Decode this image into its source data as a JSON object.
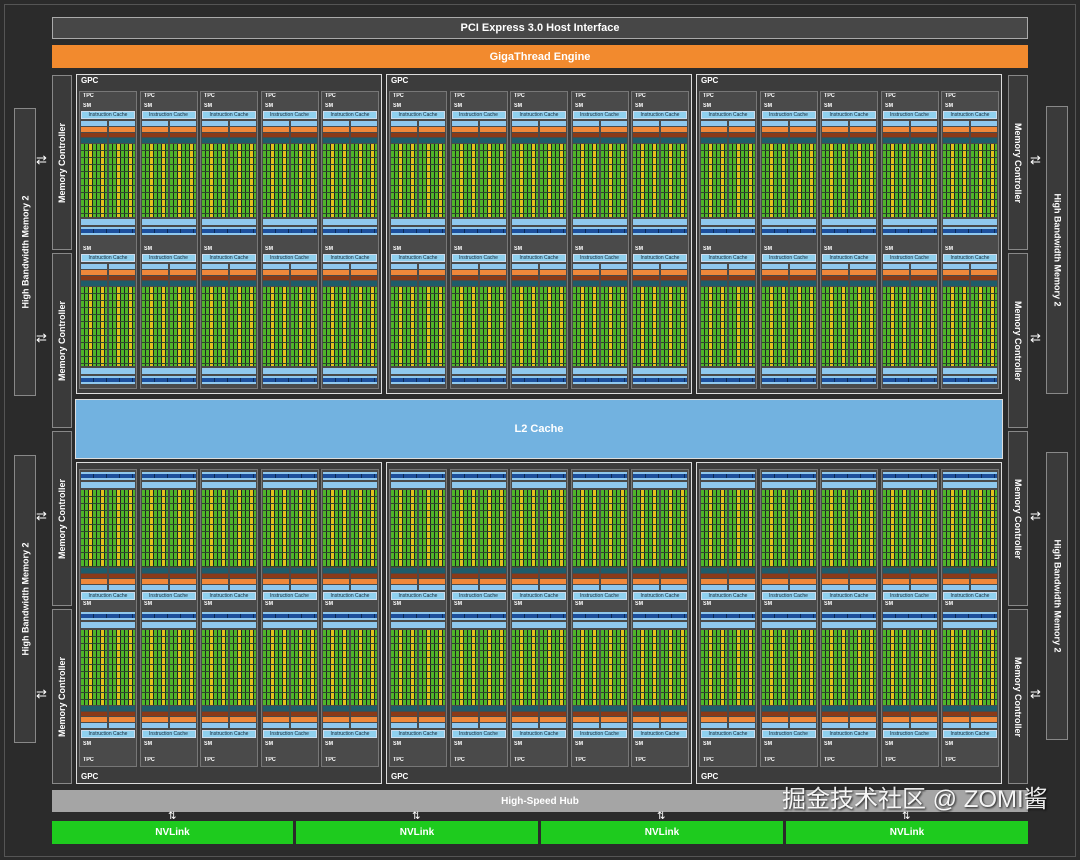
{
  "pci": "PCI Express 3.0 Host Interface",
  "giga": "GigaThread Engine",
  "l2": "L2 Cache",
  "hub": "High-Speed Hub",
  "nvlink": [
    "NVLink",
    "NVLink",
    "NVLink",
    "NVLink"
  ],
  "memory_controller": "Memory Controller",
  "hbm": "High Bandwidth Memory 2",
  "gpc": "GPC",
  "tpc": "TPC",
  "sm": "SM",
  "icache": "Instruction Cache",
  "watermark": "掘金技术社区 @ ZOMI酱",
  "colors": {
    "giga": "#f28a2e",
    "l2": "#72b2e0",
    "nvlink": "#1ecb1e",
    "hub": "#a5a5a5",
    "core_fp": "#4fb52a",
    "core_int": "#e2c21e"
  }
}
